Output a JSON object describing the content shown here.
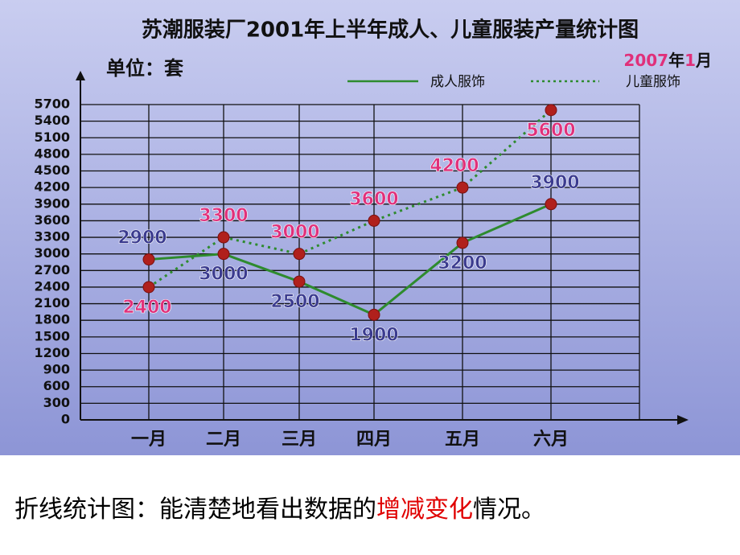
{
  "chart_data": {
    "type": "line",
    "title": "苏潮服装厂2001年上半年成人、儿童服装产量统计图",
    "unit_label": "单位：套",
    "date_parts": [
      "2007",
      "年",
      "1",
      "月"
    ],
    "categories": [
      "一月",
      "二月",
      "三月",
      "四月",
      "五月",
      "六月"
    ],
    "series": [
      {
        "name": "成人服饰",
        "color": "#2e8b2e",
        "style": "solid",
        "label_color": "#3b3b8f",
        "values": [
          2900,
          3000,
          2500,
          1900,
          3200,
          3900
        ]
      },
      {
        "name": "儿童服饰",
        "color": "#2e8b2e",
        "style": "dotted",
        "label_color": "#e0307a",
        "values": [
          2400,
          3300,
          3000,
          3600,
          4200,
          5600
        ]
      }
    ],
    "ylim": [
      0,
      5700
    ],
    "yticks": [
      0,
      300,
      600,
      900,
      1200,
      1500,
      1800,
      2100,
      2400,
      2700,
      3000,
      3300,
      3600,
      3900,
      4200,
      4500,
      4800,
      5100,
      5400,
      5700
    ],
    "grid": true
  },
  "caption_parts": [
    "折线统计图：能清楚地看出数据的",
    "增减变化",
    "情况。"
  ]
}
